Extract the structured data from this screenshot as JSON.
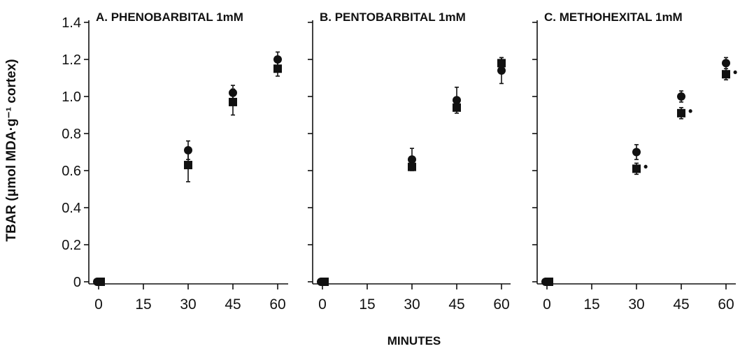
{
  "figure": {
    "ylabel": "TBAR (μmol MDA·g⁻¹ cortex)",
    "xlabel": "MINUTES"
  },
  "chart_data": [
    {
      "type": "scatter",
      "title": "A. PHENOBARBITAL 1mM",
      "x_ticks": [
        "0",
        "15",
        "30",
        "45",
        "60"
      ],
      "y_ticks": [
        "0",
        "0.2",
        "0.4",
        "0.6",
        "0.8",
        "1.0",
        "1.2",
        "1.4"
      ],
      "xlim": [
        0,
        60
      ],
      "ylim": [
        0,
        1.4
      ],
      "show_y_tick_labels": true,
      "series": [
        {
          "marker": "circle",
          "points": [
            {
              "x": 0,
              "y": 0.0,
              "err": 0
            },
            {
              "x": 30,
              "y": 0.71,
              "err": 0.05
            },
            {
              "x": 45,
              "y": 1.02,
              "err": 0.04
            },
            {
              "x": 60,
              "y": 1.2,
              "err": 0.04
            }
          ]
        },
        {
          "marker": "square",
          "points": [
            {
              "x": 0,
              "y": 0.0,
              "err": 0
            },
            {
              "x": 30,
              "y": 0.63,
              "err": 0.09
            },
            {
              "x": 45,
              "y": 0.97,
              "err": 0.07
            },
            {
              "x": 60,
              "y": 1.15,
              "err": 0.04
            }
          ]
        }
      ]
    },
    {
      "type": "scatter",
      "title": "B. PENTOBARBITAL 1mM",
      "x_ticks": [
        "0",
        "15",
        "30",
        "45",
        "60"
      ],
      "y_ticks": [
        "0",
        "0.2",
        "0.4",
        "0.6",
        "0.8",
        "1.0",
        "1.2",
        "1.4"
      ],
      "xlim": [
        0,
        60
      ],
      "ylim": [
        0,
        1.4
      ],
      "show_y_tick_labels": false,
      "series": [
        {
          "marker": "circle",
          "points": [
            {
              "x": 0,
              "y": 0.0,
              "err": 0
            },
            {
              "x": 30,
              "y": 0.66,
              "err": 0.06
            },
            {
              "x": 45,
              "y": 0.98,
              "err": 0.07
            },
            {
              "x": 60,
              "y": 1.14,
              "err": 0.07
            }
          ]
        },
        {
          "marker": "square",
          "points": [
            {
              "x": 0,
              "y": 0.0,
              "err": 0
            },
            {
              "x": 30,
              "y": 0.62,
              "err": 0
            },
            {
              "x": 45,
              "y": 0.94,
              "err": 0
            },
            {
              "x": 60,
              "y": 1.18,
              "err": 0.03
            }
          ]
        }
      ]
    },
    {
      "type": "scatter",
      "title": "C. METHOHEXITAL 1mM",
      "x_ticks": [
        "0",
        "15",
        "30",
        "45",
        "60"
      ],
      "y_ticks": [
        "0",
        "0.2",
        "0.4",
        "0.6",
        "0.8",
        "1.0",
        "1.2",
        "1.4"
      ],
      "xlim": [
        0,
        60
      ],
      "ylim": [
        0,
        1.4
      ],
      "show_y_tick_labels": false,
      "series": [
        {
          "marker": "circle",
          "points": [
            {
              "x": 0,
              "y": 0.0,
              "err": 0
            },
            {
              "x": 30,
              "y": 0.7,
              "err": 0.04
            },
            {
              "x": 45,
              "y": 1.0,
              "err": 0.03
            },
            {
              "x": 60,
              "y": 1.18,
              "err": 0.03
            }
          ]
        },
        {
          "marker": "square",
          "points": [
            {
              "x": 0,
              "y": 0.0,
              "err": 0
            },
            {
              "x": 30,
              "y": 0.61,
              "err": 0.03
            },
            {
              "x": 45,
              "y": 0.91,
              "err": 0.03
            },
            {
              "x": 60,
              "y": 1.12,
              "err": 0.03
            }
          ]
        }
      ],
      "annotations": [
        {
          "x": 30,
          "y": 0.62,
          "text": "•"
        },
        {
          "x": 45,
          "y": 0.92,
          "text": "•"
        },
        {
          "x": 60,
          "y": 1.13,
          "text": "•"
        }
      ]
    }
  ]
}
